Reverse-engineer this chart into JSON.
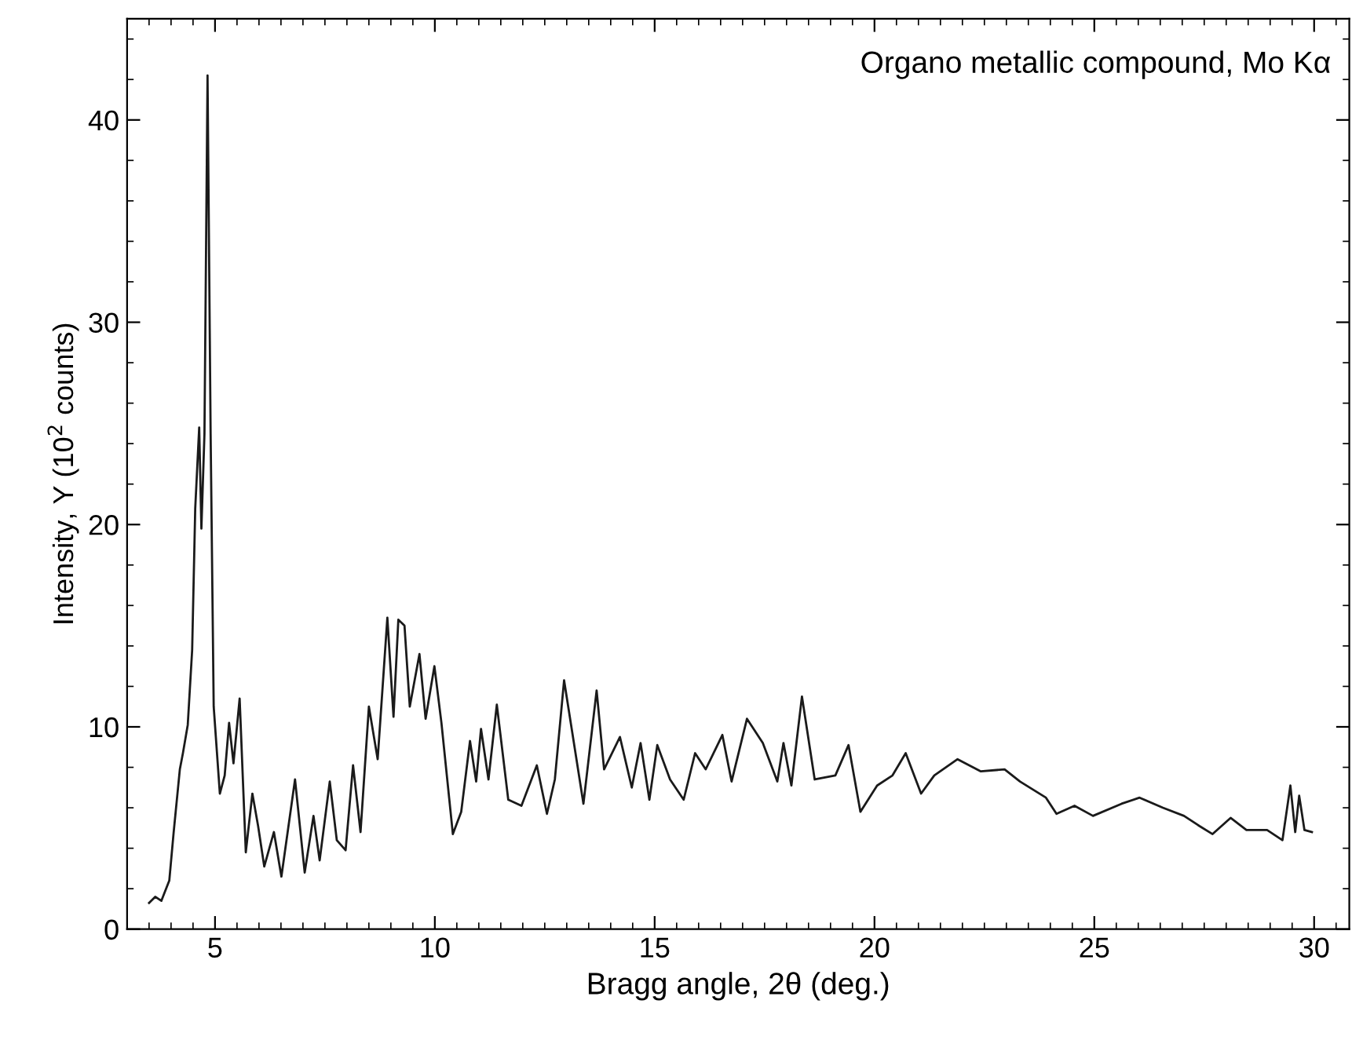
{
  "chart_data": {
    "type": "line",
    "xlabel": "Bragg angle, 2θ (deg.)",
    "ylabel": "Intensity, Y (10$^{2}$ counts)",
    "annotations": [
      "Organo metallic compound, Mo Kα"
    ],
    "xlim": [
      3.0,
      30.8
    ],
    "ylim": [
      0,
      45
    ],
    "xticks": [
      5,
      10,
      15,
      20,
      25,
      30
    ],
    "yticks": [
      0,
      10,
      20,
      30,
      40
    ],
    "grid": false,
    "marker": "none",
    "line_style": "solid",
    "series": [
      {
        "color": "#1a1a1a",
        "x": [
          3.5,
          3.64,
          3.78,
          3.96,
          4.06,
          4.2,
          4.27,
          4.38,
          4.48,
          4.55,
          4.64,
          4.69,
          4.76,
          4.83,
          4.9,
          4.97,
          5.11,
          5.22,
          5.32,
          5.42,
          5.56,
          5.7,
          5.85,
          5.98,
          6.12,
          6.34,
          6.51,
          6.82,
          7.04,
          7.24,
          7.38,
          7.61,
          7.77,
          7.97,
          8.14,
          8.31,
          8.5,
          8.7,
          8.92,
          9.06,
          9.17,
          9.31,
          9.43,
          9.65,
          9.79,
          9.99,
          10.15,
          10.41,
          10.6,
          10.8,
          10.94,
          11.05,
          11.22,
          11.41,
          11.67,
          11.97,
          12.32,
          12.55,
          12.73,
          12.94,
          13.38,
          13.68,
          13.85,
          14.21,
          14.48,
          14.68,
          14.88,
          15.06,
          15.35,
          15.66,
          15.92,
          16.16,
          16.54,
          16.75,
          17.1,
          17.46,
          17.79,
          17.93,
          18.11,
          18.35,
          18.64,
          19.11,
          19.41,
          19.68,
          20.06,
          20.41,
          20.71,
          21.06,
          21.36,
          21.89,
          22.42,
          22.96,
          23.31,
          23.9,
          24.14,
          24.55,
          24.97,
          25.62,
          26.03,
          26.56,
          27.04,
          27.39,
          27.69,
          28.1,
          28.46,
          28.93,
          29.28,
          29.46,
          29.57,
          29.66,
          29.78,
          29.95
        ],
        "values": [
          1.3,
          1.6,
          1.4,
          2.4,
          4.8,
          7.9,
          8.7,
          10.1,
          13.8,
          20.8,
          24.8,
          19.8,
          24.5,
          42.2,
          24.5,
          11.0,
          6.7,
          7.6,
          10.2,
          8.2,
          11.4,
          3.8,
          6.7,
          5.1,
          3.1,
          4.8,
          2.6,
          7.4,
          2.8,
          5.6,
          3.4,
          7.3,
          4.4,
          3.9,
          8.1,
          4.8,
          11.0,
          8.4,
          15.4,
          10.5,
          15.3,
          15.0,
          11.0,
          13.6,
          10.4,
          13.0,
          10.2,
          4.7,
          5.8,
          9.3,
          7.3,
          9.9,
          7.4,
          11.1,
          6.4,
          6.1,
          8.1,
          5.7,
          7.4,
          12.3,
          6.2,
          11.8,
          7.9,
          9.5,
          7.0,
          9.2,
          6.4,
          9.1,
          7.4,
          6.4,
          8.7,
          7.9,
          9.6,
          7.3,
          10.4,
          9.2,
          7.3,
          9.2,
          7.1,
          11.5,
          7.4,
          7.6,
          9.1,
          5.8,
          7.1,
          7.6,
          8.7,
          6.7,
          7.6,
          8.4,
          7.8,
          7.9,
          7.3,
          6.5,
          5.7,
          6.1,
          5.6,
          6.2,
          6.5,
          6.0,
          5.6,
          5.1,
          4.7,
          5.5,
          4.9,
          4.9,
          4.4,
          7.1,
          4.8,
          6.6,
          4.9,
          4.8
        ]
      }
    ]
  }
}
